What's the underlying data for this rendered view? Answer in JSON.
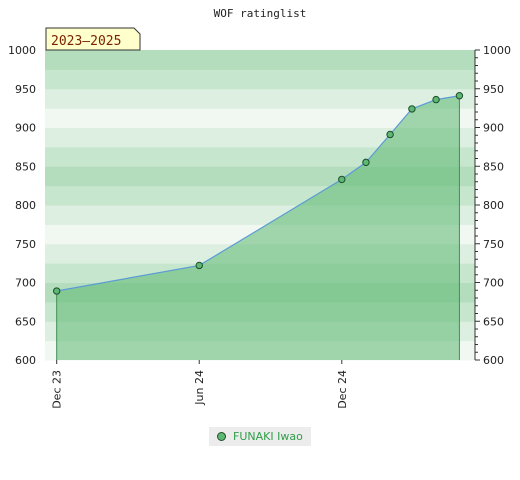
{
  "chart_data": {
    "type": "area",
    "title": "WOF ratinglist",
    "period_label": "2023–2025",
    "x_ticks": [
      "Dec 23",
      "Jun 24",
      "Dec 24"
    ],
    "ylim": [
      600,
      1000
    ],
    "y_ticks": [
      600,
      650,
      700,
      750,
      800,
      850,
      900,
      950,
      1000
    ],
    "y_ticks_right": true,
    "series": [
      {
        "name": "FUNAKI Iwao",
        "color": "#5cb873",
        "line_color": "#5b9bd5",
        "x": [
          "2023-12-01",
          "2024-06-01",
          "2024-12-01",
          "2025-01-01",
          "2025-02-01",
          "2025-03-01",
          "2025-04-01",
          "2025-05-01"
        ],
        "values": [
          689,
          722,
          833,
          855,
          891,
          924,
          936,
          941
        ]
      }
    ],
    "legend_position": "bottom"
  }
}
